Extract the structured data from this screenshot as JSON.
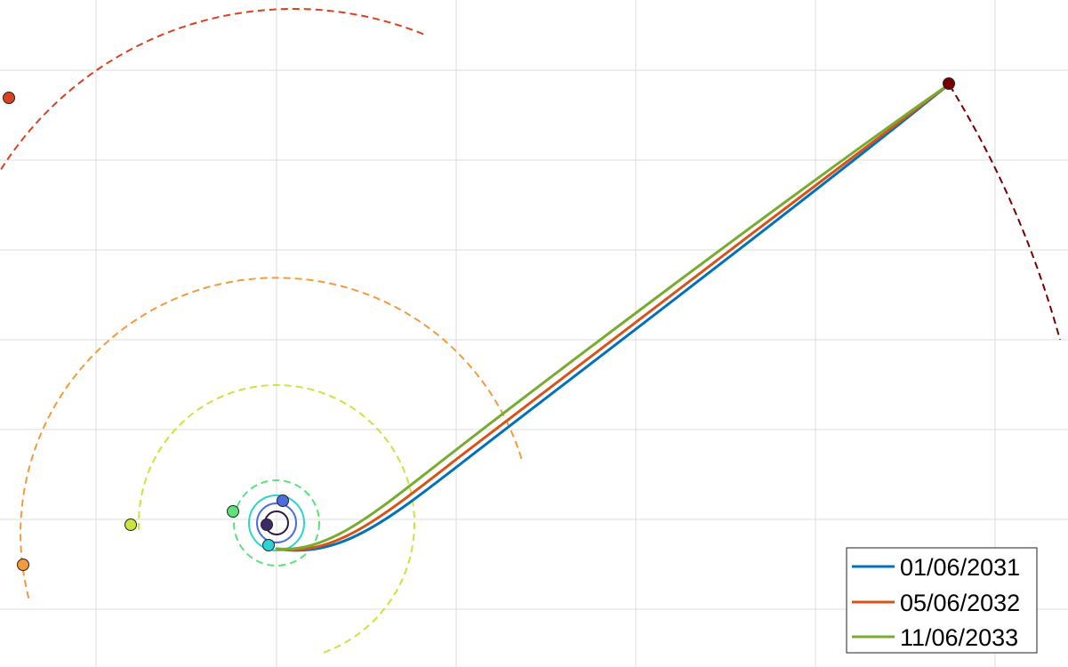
{
  "chart_data": {
    "type": "line",
    "grid": true,
    "legend_placement": "bottom-right",
    "series": [
      {
        "name": "01/06/2031",
        "color": "#0072BD"
      },
      {
        "name": "05/06/2032",
        "color": "#D95319"
      },
      {
        "name": "11/06/2033",
        "color": "#77AC30"
      }
    ]
  },
  "bodies": [
    {
      "kind": "sun",
      "color": "#2d1b3d"
    },
    {
      "kind": "planet-inner",
      "color": "#3a2a6a"
    },
    {
      "kind": "planet-blue",
      "color": "#4a6ee0"
    },
    {
      "kind": "planet-cyan",
      "color": "#2ad4d4"
    },
    {
      "kind": "planet-green",
      "color": "#5ee07a"
    },
    {
      "kind": "planet-lime",
      "color": "#c8e63c"
    },
    {
      "kind": "planet-orange",
      "color": "#f6993a"
    },
    {
      "kind": "planet-red",
      "color": "#d8421e"
    },
    {
      "kind": "target-dark-red",
      "color": "#7a0000"
    }
  ]
}
